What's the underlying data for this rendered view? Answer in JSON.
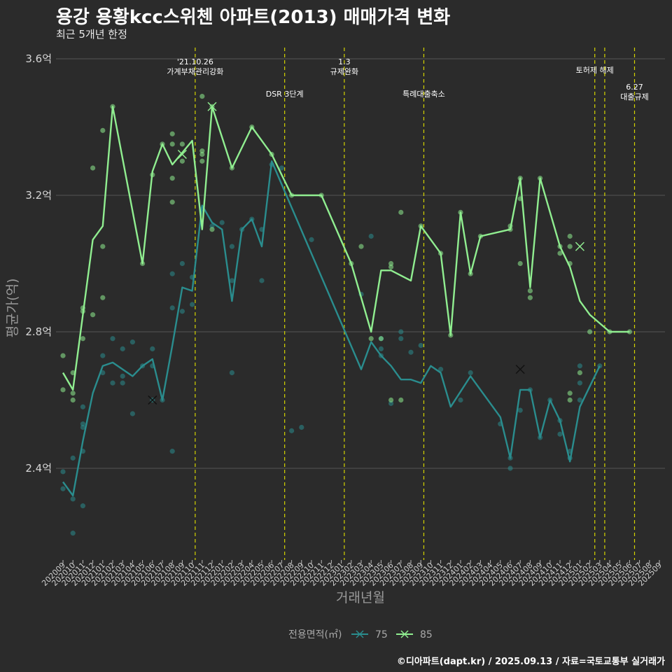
{
  "title": "용강 용황kcc스위첸 아파트(2013) 매매가격 변화",
  "subtitle": "최근 5개년 한정",
  "caption": "©디아파트(dapt.kr) / 2025.09.13 / 자료=국토교통부 실거래가",
  "chart_data": {
    "type": "line",
    "xlabel": "거래년월",
    "ylabel": "평균가(억)",
    "ylim": [
      2.1,
      3.65
    ],
    "yticks": [
      {
        "value": 2.4,
        "label": "2.4억"
      },
      {
        "value": 2.8,
        "label": "2.8억"
      },
      {
        "value": 3.2,
        "label": "3.2억"
      },
      {
        "value": 3.6,
        "label": "3.6억"
      }
    ],
    "categories": [
      "202009",
      "202010",
      "202011",
      "202012",
      "202101",
      "202102",
      "202103",
      "202104",
      "202105",
      "202106",
      "202107",
      "202108",
      "202109",
      "202110",
      "202111",
      "202112",
      "202201",
      "202202",
      "202203",
      "202204",
      "202205",
      "202206",
      "202207",
      "202208",
      "202209",
      "202210",
      "202211",
      "202212",
      "202301",
      "202302",
      "202303",
      "202304",
      "202305",
      "202306",
      "202307",
      "202308",
      "202309",
      "202310",
      "202311",
      "202312",
      "202401",
      "202402",
      "202403",
      "202404",
      "202405",
      "202406",
      "202407",
      "202408",
      "202409",
      "202410",
      "202411",
      "202412",
      "202501",
      "202502",
      "202503",
      "202504",
      "202505",
      "202506",
      "202507",
      "202508",
      "202509"
    ],
    "grid": true,
    "legend": {
      "title": "전용면적(㎡)",
      "position": "bottom"
    },
    "events": [
      {
        "x": 13.3,
        "label": "'21.10.26\n가계부채관리강화",
        "row": 0
      },
      {
        "x": 22.3,
        "label": "DSR 3단계",
        "row": 1
      },
      {
        "x": 28.3,
        "label": "1.3\n규제완화",
        "row": 0
      },
      {
        "x": 36.3,
        "label": "특례대출축소",
        "row": 1
      },
      {
        "x": 53.5,
        "label": "토허제 해제",
        "row": 0
      },
      {
        "x": 54.5,
        "label": "",
        "row": 0
      },
      {
        "x": 57.5,
        "label": "6.27\n대출규제",
        "row": 2
      }
    ],
    "series": [
      {
        "name": "75",
        "color": "#2a8d8e",
        "line": [
          [
            0,
            2.36
          ],
          [
            1,
            2.32
          ],
          [
            2,
            2.48
          ],
          [
            3,
            2.62
          ],
          [
            4,
            2.7
          ],
          [
            5,
            2.71
          ],
          [
            6,
            2.69
          ],
          [
            7,
            2.67
          ],
          [
            8,
            2.7
          ],
          [
            9,
            2.72
          ],
          [
            10,
            2.6
          ],
          [
            11,
            2.76
          ],
          [
            12,
            2.93
          ],
          [
            13,
            2.92
          ],
          [
            14,
            3.17
          ],
          [
            15,
            3.12
          ],
          [
            16,
            3.1
          ],
          [
            17,
            2.89
          ],
          [
            18,
            3.1
          ],
          [
            19,
            3.13
          ],
          [
            20,
            3.05
          ],
          [
            21,
            3.3
          ],
          [
            30,
            2.69
          ],
          [
            31,
            2.77
          ],
          [
            32,
            2.73
          ],
          [
            33,
            2.7
          ],
          [
            34,
            2.66
          ],
          [
            35,
            2.66
          ],
          [
            36,
            2.65
          ],
          [
            37,
            2.7
          ],
          [
            38,
            2.68
          ],
          [
            39,
            2.58
          ],
          [
            41,
            2.67
          ],
          [
            44,
            2.55
          ],
          [
            45,
            2.43
          ],
          [
            46,
            2.63
          ],
          [
            47,
            2.63
          ],
          [
            48,
            2.49
          ],
          [
            49,
            2.6
          ],
          [
            50,
            2.54
          ],
          [
            51,
            2.42
          ],
          [
            52,
            2.58
          ],
          [
            54,
            2.7
          ]
        ],
        "points": [
          [
            0,
            2.34
          ],
          [
            0,
            2.39
          ],
          [
            1,
            2.21
          ],
          [
            1,
            2.31
          ],
          [
            1,
            2.43
          ],
          [
            2,
            2.29
          ],
          [
            2,
            2.45
          ],
          [
            2,
            2.52
          ],
          [
            2,
            2.53
          ],
          [
            2,
            2.58
          ],
          [
            4,
            2.68
          ],
          [
            4,
            2.73
          ],
          [
            5,
            2.65
          ],
          [
            5,
            2.78
          ],
          [
            6,
            2.65
          ],
          [
            6,
            2.67
          ],
          [
            6,
            2.75
          ],
          [
            7,
            2.56
          ],
          [
            7,
            2.77
          ],
          [
            8,
            2.7
          ],
          [
            9,
            2.6
          ],
          [
            9,
            2.7
          ],
          [
            9,
            2.75
          ],
          [
            10,
            2.6
          ],
          [
            11,
            2.45
          ],
          [
            11,
            2.87
          ],
          [
            11,
            2.97
          ],
          [
            12,
            2.86
          ],
          [
            12,
            3.0
          ],
          [
            13,
            2.88
          ],
          [
            13,
            2.96
          ],
          [
            14,
            3.16
          ],
          [
            15,
            3.11
          ],
          [
            16,
            3.12
          ],
          [
            17,
            2.68
          ],
          [
            17,
            2.95
          ],
          [
            17,
            3.05
          ],
          [
            18,
            3.1
          ],
          [
            19,
            3.13
          ],
          [
            20,
            2.95
          ],
          [
            20,
            3.1
          ],
          [
            21,
            3.29
          ],
          [
            22,
            3.28
          ],
          [
            23,
            2.51
          ],
          [
            24,
            2.52
          ],
          [
            25,
            3.07
          ],
          [
            30,
            2.91
          ],
          [
            31,
            3.08
          ],
          [
            32,
            2.73
          ],
          [
            32,
            2.75
          ],
          [
            32,
            2.78
          ],
          [
            33,
            2.59
          ],
          [
            34,
            2.78
          ],
          [
            34,
            2.8
          ],
          [
            35,
            2.74
          ],
          [
            36,
            2.76
          ],
          [
            38,
            2.69
          ],
          [
            40,
            2.6
          ],
          [
            41,
            2.68
          ],
          [
            44,
            2.53
          ],
          [
            45,
            2.4
          ],
          [
            45,
            2.43
          ],
          [
            46,
            2.57
          ],
          [
            47,
            2.63
          ],
          [
            48,
            2.49
          ],
          [
            49,
            2.6
          ],
          [
            50,
            2.5
          ],
          [
            50,
            2.54
          ],
          [
            51,
            2.43
          ],
          [
            51,
            2.45
          ],
          [
            52,
            2.6
          ],
          [
            52,
            2.65
          ],
          [
            52,
            2.7
          ],
          [
            54,
            2.7
          ]
        ],
        "markers": [
          [
            9,
            2.6
          ],
          [
            46,
            2.69
          ]
        ]
      },
      {
        "name": "85",
        "color": "#90ee90",
        "line": [
          [
            0,
            2.68
          ],
          [
            1,
            2.63
          ],
          [
            3,
            3.07
          ],
          [
            4,
            3.11
          ],
          [
            5,
            3.46
          ],
          [
            8,
            3.0
          ],
          [
            9,
            3.27
          ],
          [
            10,
            3.35
          ],
          [
            11,
            3.29
          ],
          [
            13,
            3.36
          ],
          [
            14,
            3.1
          ],
          [
            15,
            3.46
          ],
          [
            17,
            3.28
          ],
          [
            19,
            3.4
          ],
          [
            21,
            3.32
          ],
          [
            23,
            3.2
          ],
          [
            26,
            3.2
          ],
          [
            29,
            3.0
          ],
          [
            31,
            2.8
          ],
          [
            32,
            2.98
          ],
          [
            33,
            2.98
          ],
          [
            35,
            2.95
          ],
          [
            36,
            3.11
          ],
          [
            38,
            3.03
          ],
          [
            39,
            2.79
          ],
          [
            40,
            3.15
          ],
          [
            41,
            2.97
          ],
          [
            42,
            3.08
          ],
          [
            45,
            3.1
          ],
          [
            46,
            3.25
          ],
          [
            47,
            2.93
          ],
          [
            48,
            3.25
          ],
          [
            50,
            3.05
          ],
          [
            51,
            2.99
          ],
          [
            52,
            2.89
          ],
          [
            53,
            2.85
          ],
          [
            55,
            2.8
          ],
          [
            57,
            2.8
          ]
        ],
        "points": [
          [
            0,
            2.63
          ],
          [
            0,
            2.73
          ],
          [
            1,
            2.6
          ],
          [
            1,
            2.62
          ],
          [
            1,
            2.68
          ],
          [
            2,
            2.78
          ],
          [
            2,
            2.86
          ],
          [
            2,
            2.87
          ],
          [
            3,
            2.85
          ],
          [
            3,
            3.28
          ],
          [
            4,
            2.9
          ],
          [
            4,
            3.05
          ],
          [
            4,
            3.39
          ],
          [
            5,
            3.46
          ],
          [
            8,
            3.0
          ],
          [
            9,
            3.26
          ],
          [
            10,
            3.35
          ],
          [
            11,
            3.18
          ],
          [
            11,
            3.25
          ],
          [
            11,
            3.35
          ],
          [
            11,
            3.38
          ],
          [
            12,
            3.3
          ],
          [
            12,
            3.35
          ],
          [
            14,
            3.3
          ],
          [
            14,
            3.32
          ],
          [
            14,
            3.49
          ],
          [
            14,
            3.33
          ],
          [
            15,
            3.1
          ],
          [
            15,
            3.46
          ],
          [
            17,
            3.28
          ],
          [
            19,
            3.4
          ],
          [
            21,
            3.32
          ],
          [
            23,
            3.2
          ],
          [
            26,
            3.2
          ],
          [
            29,
            3.0
          ],
          [
            30,
            3.05
          ],
          [
            31,
            2.78
          ],
          [
            32,
            2.78
          ],
          [
            33,
            2.6
          ],
          [
            33,
            2.99
          ],
          [
            33,
            3.0
          ],
          [
            34,
            2.6
          ],
          [
            34,
            3.15
          ],
          [
            36,
            3.11
          ],
          [
            38,
            3.03
          ],
          [
            39,
            2.79
          ],
          [
            40,
            3.15
          ],
          [
            41,
            2.97
          ],
          [
            42,
            3.08
          ],
          [
            45,
            3.1
          ],
          [
            45,
            3.11
          ],
          [
            46,
            3.19
          ],
          [
            46,
            3.0
          ],
          [
            46,
            3.25
          ],
          [
            47,
            2.92
          ],
          [
            47,
            2.9
          ],
          [
            48,
            3.25
          ],
          [
            50,
            3.05
          ],
          [
            50,
            3.03
          ],
          [
            51,
            3.0
          ],
          [
            51,
            3.08
          ],
          [
            51,
            3.05
          ],
          [
            51,
            2.62
          ],
          [
            51,
            2.6
          ],
          [
            52,
            2.68
          ],
          [
            53,
            2.8
          ],
          [
            55,
            2.8
          ],
          [
            57,
            2.8
          ]
        ],
        "markers": [
          [
            12,
            3.32
          ],
          [
            15,
            3.46
          ],
          [
            52,
            3.05
          ]
        ]
      }
    ]
  }
}
